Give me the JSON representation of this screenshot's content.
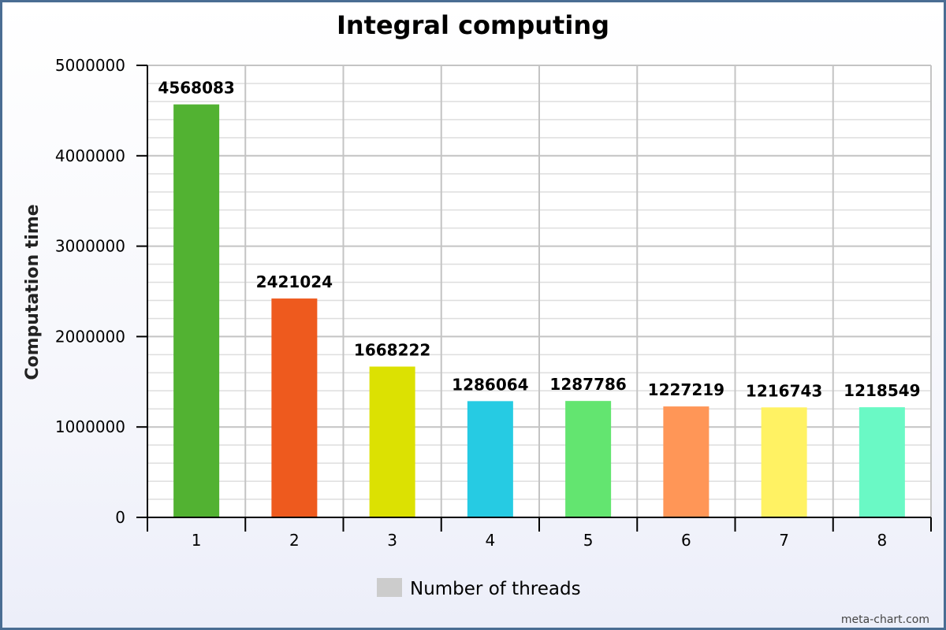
{
  "chart_data": {
    "type": "bar",
    "title": "Integral computing",
    "xlabel": "",
    "ylabel": "Computation time",
    "categories": [
      "1",
      "2",
      "3",
      "4",
      "5",
      "6",
      "7",
      "8"
    ],
    "values": [
      4568083,
      2421024,
      1668222,
      1286064,
      1287786,
      1227219,
      1216743,
      1218549
    ],
    "data_labels": [
      "4568083",
      "2421024",
      "1668222",
      "1286064",
      "1287786",
      "1227219",
      "1216743",
      "1218549"
    ],
    "colors": [
      "#52b232",
      "#ee5a1e",
      "#dce102",
      "#26cbe3",
      "#63e570",
      "#ff9657",
      "#fff263",
      "#6af9c5"
    ],
    "ylim": [
      0,
      5000000
    ],
    "yticks": [
      0,
      1000000,
      2000000,
      3000000,
      4000000,
      5000000
    ],
    "ytick_labels": [
      "0",
      "1000000",
      "2000000",
      "3000000",
      "4000000",
      "5000000"
    ],
    "grid": true,
    "legend": {
      "position": "bottom",
      "entries": [
        {
          "label": "Number of threads",
          "color": "#cccccc"
        }
      ]
    },
    "watermark": "meta-chart.com"
  }
}
